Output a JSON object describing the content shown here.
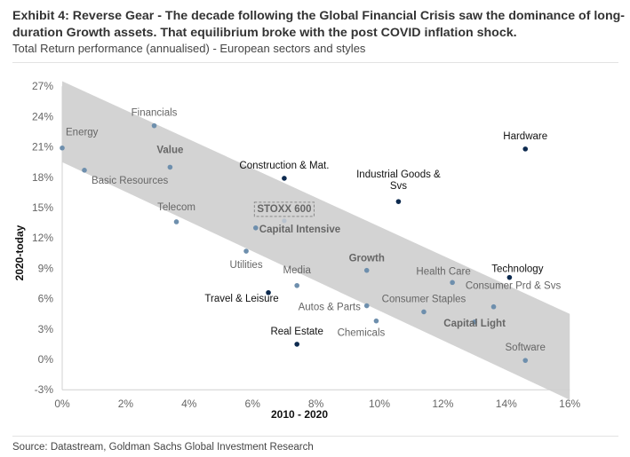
{
  "header": {
    "title": "Exhibit 4: Reverse Gear - The decade following the Global Financial Crisis saw the dominance of long-duration Growth assets. That equilibrium broke with the post COVID inflation shock.",
    "subtitle": "Total Return performance (annualised) - European sectors and styles"
  },
  "footer": {
    "source": "Source: Datastream, Goldman Sachs Global Investment Research"
  },
  "colors": {
    "band": "#d3d3d3",
    "point_dark": "#0d2a4f",
    "point_mid": "#6e8fad",
    "label_dark": "#111111",
    "label_mid": "#666666",
    "axis_tick": "#666666"
  },
  "chart_data": {
    "type": "scatter",
    "xlabel": "2010 - 2020",
    "ylabel": "2020-today",
    "xlim": [
      0,
      16
    ],
    "ylim": [
      -3,
      27
    ],
    "xticks": [
      0,
      2,
      4,
      6,
      8,
      10,
      12,
      14,
      16
    ],
    "yticks": [
      -3,
      0,
      3,
      6,
      9,
      12,
      15,
      18,
      21,
      24,
      27
    ],
    "xtick_labels": [
      "0%",
      "2%",
      "4%",
      "6%",
      "8%",
      "10%",
      "12%",
      "14%",
      "16%"
    ],
    "ytick_labels": [
      "-3%",
      "0%",
      "3%",
      "6%",
      "9%",
      "12%",
      "15%",
      "18%",
      "21%",
      "24%",
      "27%"
    ],
    "grid": false,
    "shaded_band": {
      "upper": [
        [
          0,
          27.5
        ],
        [
          16,
          4.5
        ]
      ],
      "lower": [
        [
          0,
          19.5
        ],
        [
          16,
          -4
        ]
      ]
    },
    "points": [
      {
        "label": "Energy",
        "x": 0.0,
        "y": 20.9,
        "style": "sector_mid"
      },
      {
        "label": "Basic Resources",
        "x": 0.7,
        "y": 18.7,
        "style": "sector_mid"
      },
      {
        "label": "Financials",
        "x": 2.9,
        "y": 23.1,
        "style": "sector_mid"
      },
      {
        "label": "Value",
        "x": 3.4,
        "y": 19.0,
        "style": "style_mid"
      },
      {
        "label": "Telecom",
        "x": 3.6,
        "y": 13.6,
        "style": "sector_mid"
      },
      {
        "label": "Utilities",
        "x": 5.8,
        "y": 10.7,
        "style": "sector_mid"
      },
      {
        "label": "Capital Intensive",
        "x": 6.1,
        "y": 13.0,
        "style": "style_mid"
      },
      {
        "label": "STOXX 600",
        "x": 7.0,
        "y": 13.7,
        "style": "index"
      },
      {
        "label": "Construction & Mat.",
        "x": 7.0,
        "y": 17.9,
        "style": "sector_dark"
      },
      {
        "label": "Travel & Leisure",
        "x": 6.5,
        "y": 6.6,
        "style": "sector_dark"
      },
      {
        "label": "Media",
        "x": 7.4,
        "y": 7.3,
        "style": "sector_mid"
      },
      {
        "label": "Real Estate",
        "x": 7.4,
        "y": 1.5,
        "style": "sector_dark"
      },
      {
        "label": "Growth",
        "x": 9.6,
        "y": 8.8,
        "style": "style_mid"
      },
      {
        "label": "Autos & Parts",
        "x": 9.6,
        "y": 5.3,
        "style": "sector_mid"
      },
      {
        "label": "Chemicals",
        "x": 9.9,
        "y": 3.8,
        "style": "sector_mid"
      },
      {
        "label": "Industrial Goods & Svs",
        "x": 10.6,
        "y": 15.6,
        "style": "sector_dark"
      },
      {
        "label": "Consumer Staples",
        "x": 11.4,
        "y": 4.7,
        "style": "sector_mid"
      },
      {
        "label": "Health Care",
        "x": 12.3,
        "y": 7.6,
        "style": "sector_mid"
      },
      {
        "label": "Capital Light",
        "x": 13.0,
        "y": 3.7,
        "style": "style_mid"
      },
      {
        "label": "Consumer Prd & Svs",
        "x": 13.6,
        "y": 5.2,
        "style": "sector_mid"
      },
      {
        "label": "Technology",
        "x": 14.1,
        "y": 8.1,
        "style": "sector_dark"
      },
      {
        "label": "Software",
        "x": 14.6,
        "y": -0.1,
        "style": "sector_mid"
      },
      {
        "label": "Hardware",
        "x": 14.6,
        "y": 20.8,
        "style": "sector_dark"
      }
    ]
  }
}
